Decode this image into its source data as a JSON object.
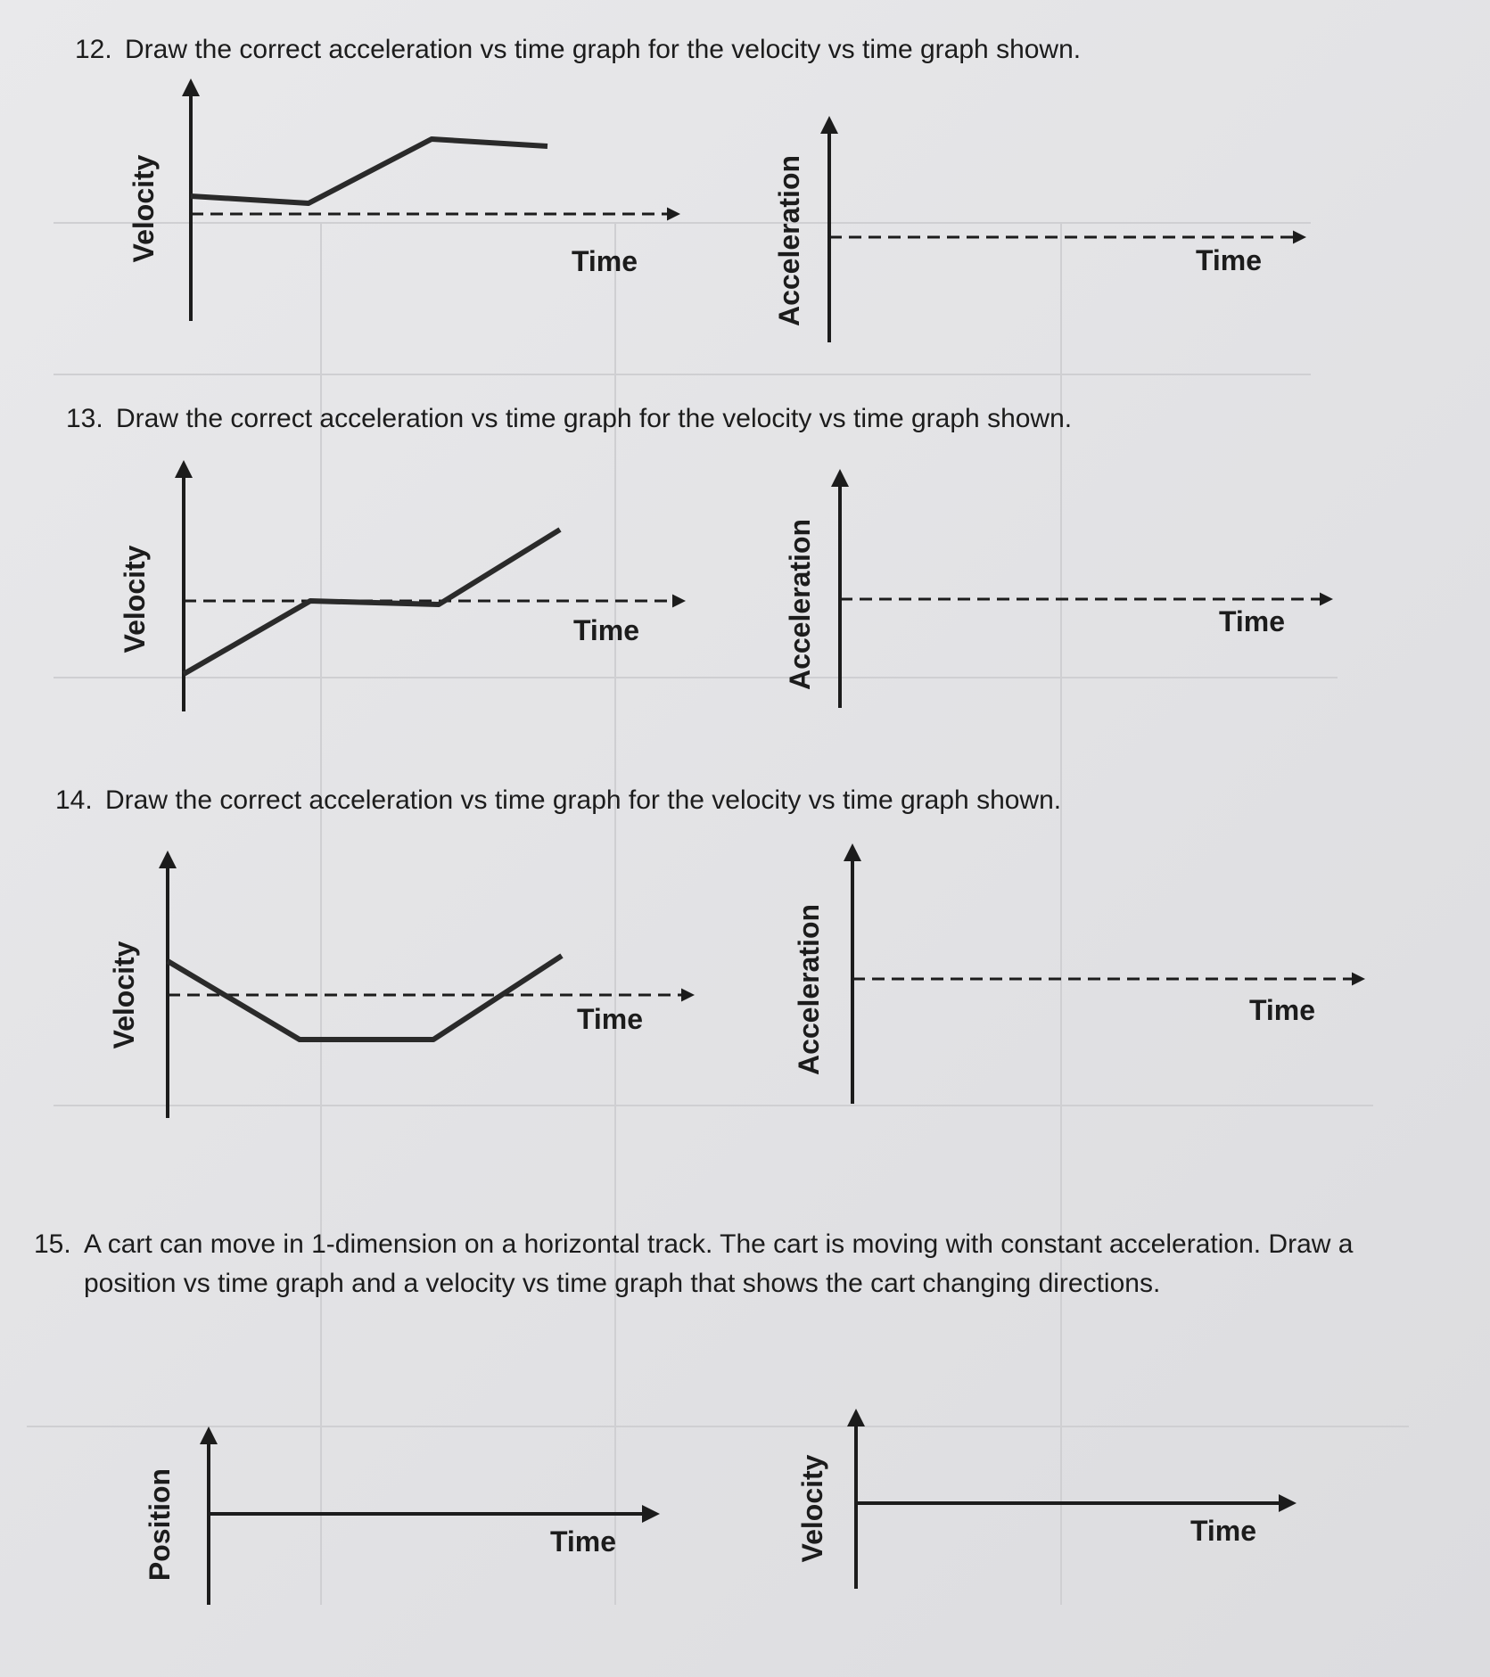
{
  "questions": [
    {
      "number": "12.",
      "text": "Draw the correct acceleration vs time graph for the velocity vs time graph shown.",
      "graphs": [
        {
          "y_label": "Velocity",
          "x_label": "Time"
        },
        {
          "y_label": "Acceleration",
          "x_label": "Time"
        }
      ]
    },
    {
      "number": "13.",
      "text": "Draw the correct acceleration vs time graph for the velocity vs time graph shown.",
      "graphs": [
        {
          "y_label": "Velocity",
          "x_label": "Time"
        },
        {
          "y_label": "Acceleration",
          "x_label": "Time"
        }
      ]
    },
    {
      "number": "14.",
      "text": "Draw the correct acceleration vs time graph for the velocity vs time graph shown.",
      "graphs": [
        {
          "y_label": "Velocity",
          "x_label": "Time"
        },
        {
          "y_label": "Acceleration",
          "x_label": "Time"
        }
      ]
    },
    {
      "number": "15.",
      "text": "A cart can move in 1-dimension on a horizontal track.  The cart is moving with constant acceleration.  Draw a position vs time graph and a velocity vs time graph that shows the cart changing directions.",
      "graphs": [
        {
          "y_label": "Position",
          "x_label": "Time"
        },
        {
          "y_label": "Velocity",
          "x_label": "Time"
        }
      ]
    }
  ]
}
